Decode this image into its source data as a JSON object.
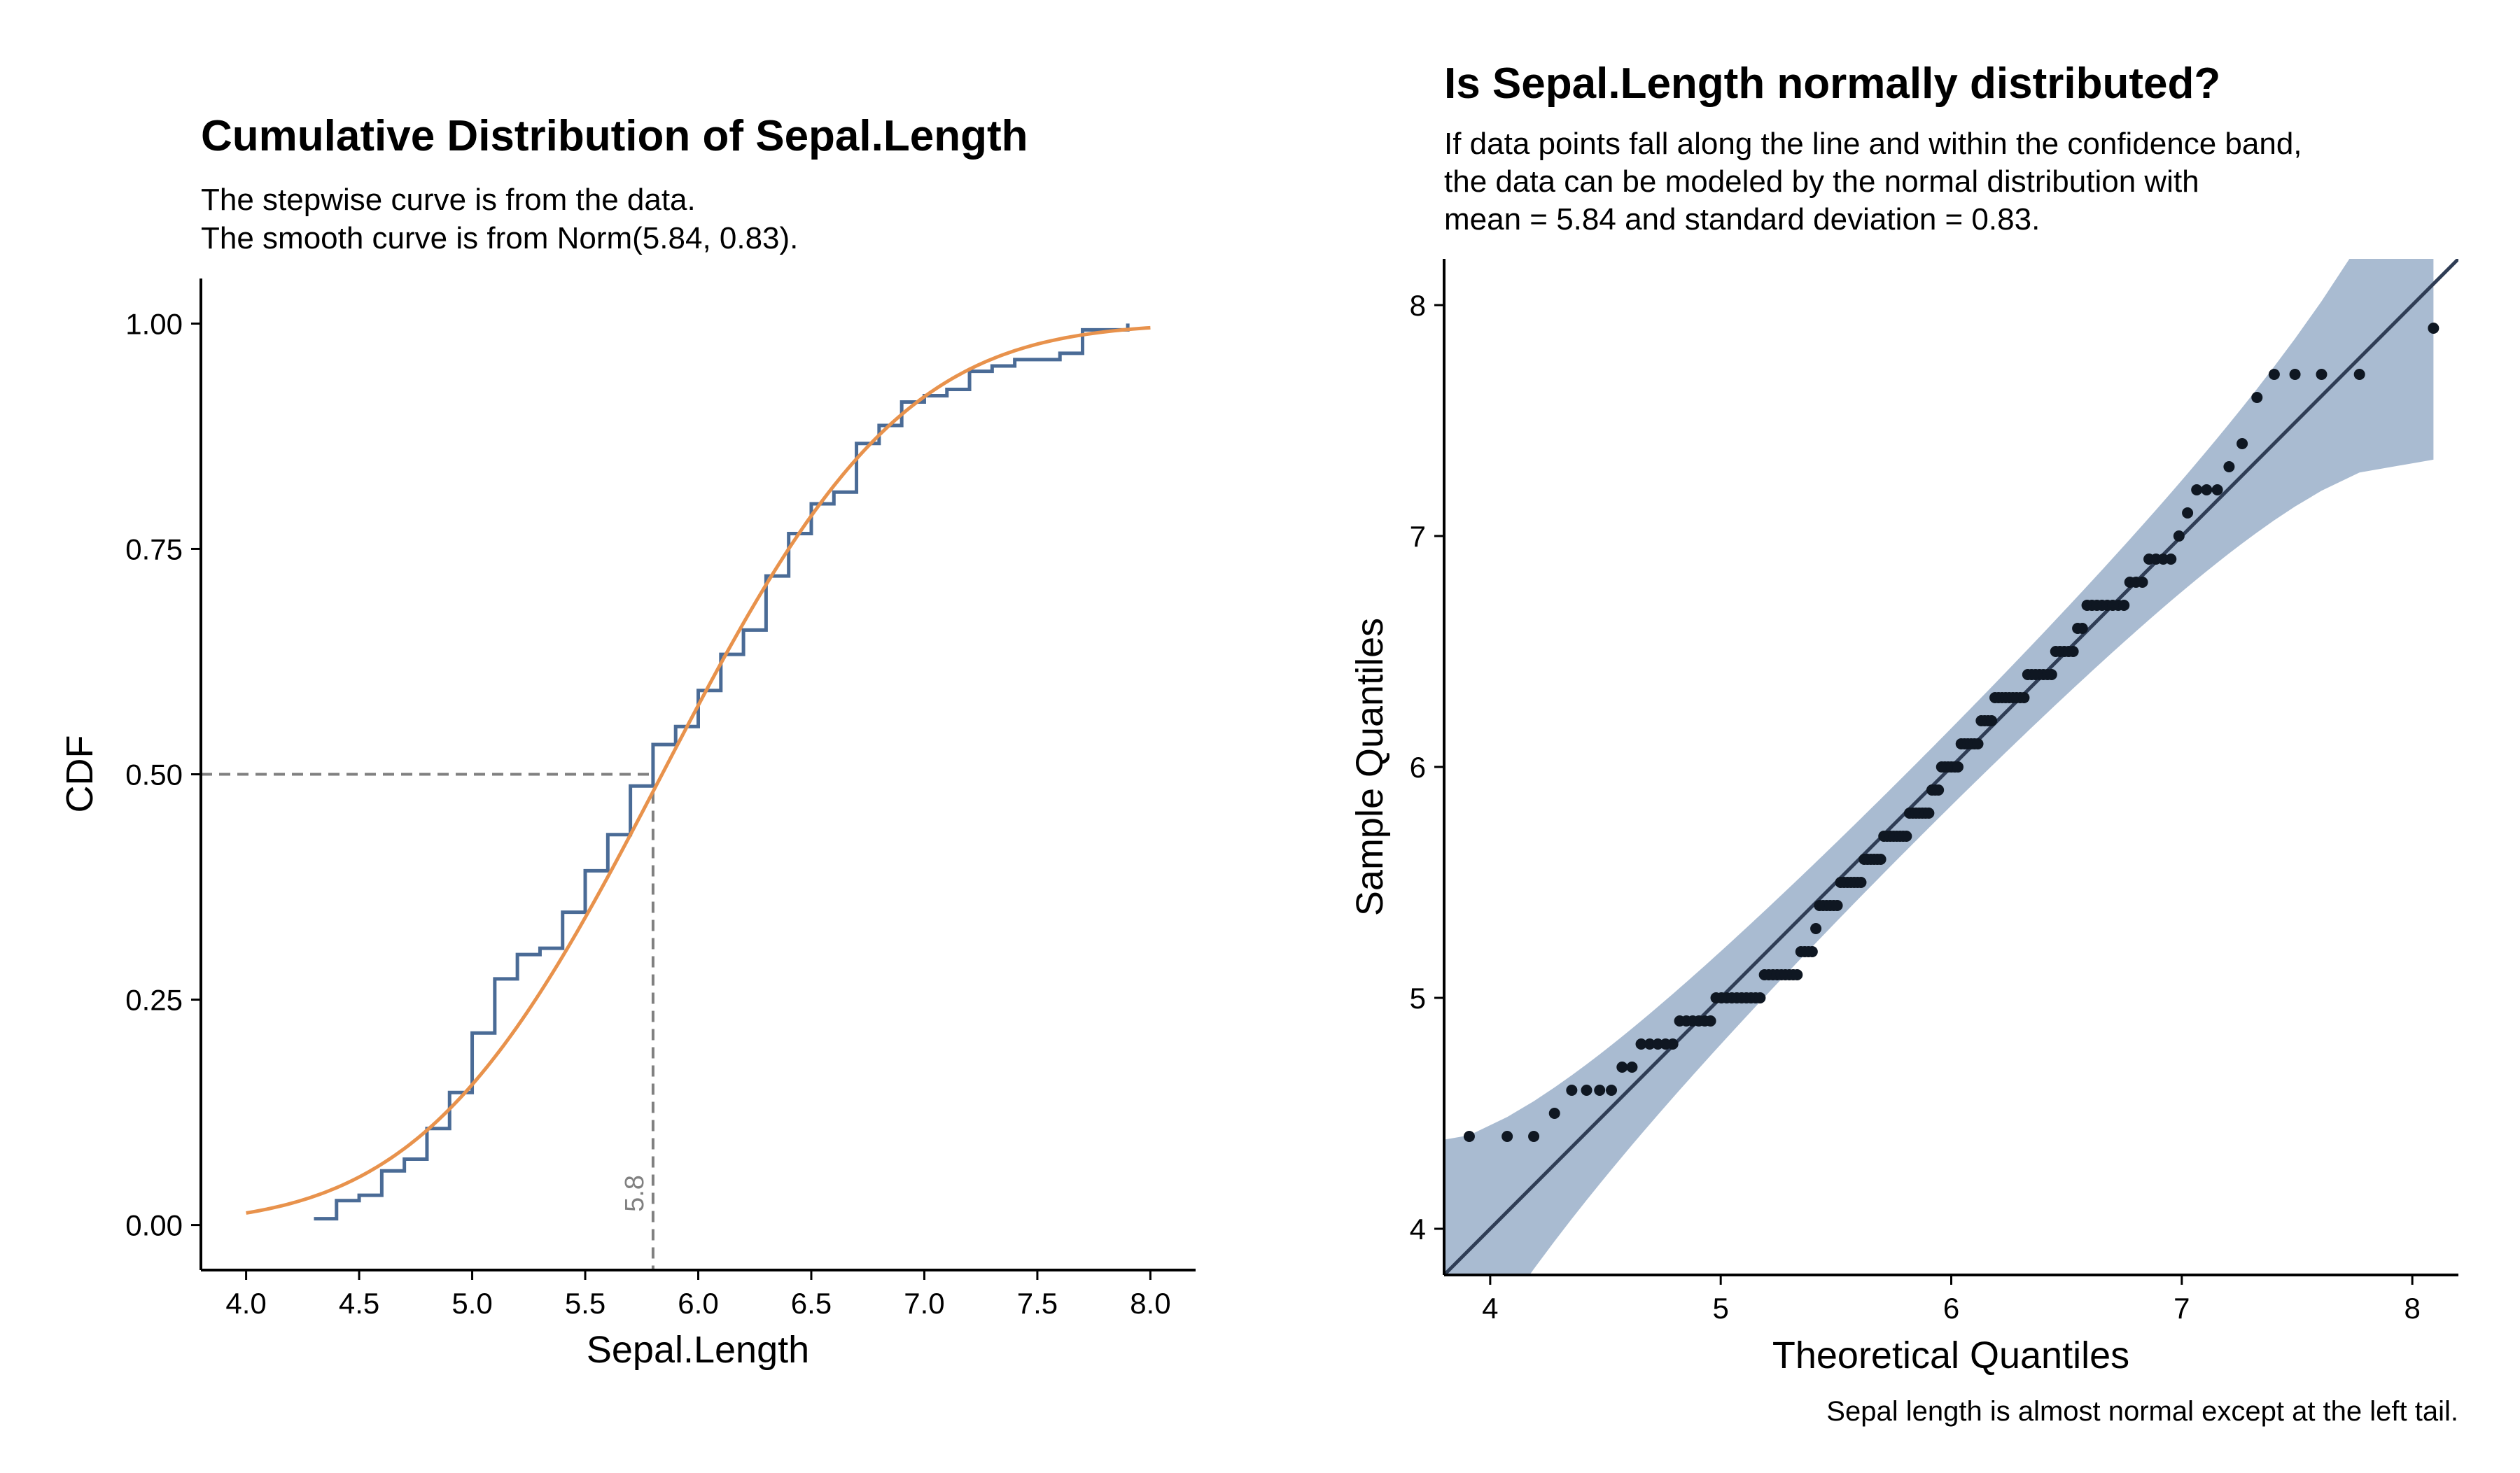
{
  "chart_data": [
    {
      "type": "line",
      "title": "Cumulative Distribution of Sepal.Length",
      "subtitle_lines": [
        "The stepwise curve is from the data.",
        "The smooth curve is from Norm(5.84, 0.83)."
      ],
      "xlabel": "Sepal.Length",
      "ylabel": "CDF",
      "xlim": [
        3.8,
        8.2
      ],
      "ylim": [
        -0.05,
        1.05
      ],
      "x_ticks": [
        "4.0",
        "4.5",
        "5.0",
        "5.5",
        "6.0",
        "6.5",
        "7.0",
        "7.5",
        "8.0"
      ],
      "y_ticks": [
        "0.00",
        "0.25",
        "0.50",
        "0.75",
        "1.00"
      ],
      "grid": false,
      "series": [
        {
          "kind": "ecdf-step",
          "color": "#4a6b96",
          "x": [
            4.3,
            4.4,
            4.5,
            4.6,
            4.7,
            4.8,
            4.9,
            5.0,
            5.1,
            5.2,
            5.3,
            5.4,
            5.5,
            5.6,
            5.7,
            5.8,
            5.9,
            6.0,
            6.1,
            6.2,
            6.3,
            6.4,
            6.5,
            6.6,
            6.7,
            6.8,
            6.9,
            7.0,
            7.1,
            7.2,
            7.3,
            7.4,
            7.6,
            7.7,
            7.9
          ],
          "cdf": [
            0.007,
            0.027,
            0.033,
            0.06,
            0.073,
            0.107,
            0.147,
            0.213,
            0.273,
            0.3,
            0.307,
            0.347,
            0.393,
            0.433,
            0.487,
            0.533,
            0.553,
            0.593,
            0.633,
            0.66,
            0.72,
            0.767,
            0.8,
            0.813,
            0.867,
            0.887,
            0.913,
            0.92,
            0.927,
            0.947,
            0.953,
            0.96,
            0.967,
            0.993,
            1.0
          ]
        },
        {
          "kind": "normal-cdf",
          "color": "#e8924c",
          "mean": 5.84,
          "sd": 0.83,
          "x_range": [
            4.0,
            8.0
          ]
        }
      ],
      "annotations": [
        {
          "kind": "median-marker",
          "x": 5.8,
          "y": 0.5,
          "label": "5.8",
          "color": "#808080"
        }
      ]
    },
    {
      "type": "scatter",
      "title": "Is Sepal.Length normally distributed?",
      "subtitle_lines": [
        "If data points fall along the line and within the confidence band,",
        "the data can be modeled by the normal distribution with",
        "mean = 5.84 and standard deviation = 0.83."
      ],
      "xlabel": "Theoretical Quantiles",
      "ylabel": "Sample Quantiles",
      "caption": "Sepal length is almost normal except at the left tail.",
      "xlim": [
        3.8,
        8.2
      ],
      "ylim": [
        3.8,
        8.2
      ],
      "x_ticks": [
        "4",
        "5",
        "6",
        "7",
        "8"
      ],
      "y_ticks": [
        "4",
        "5",
        "6",
        "7",
        "8"
      ],
      "grid": false,
      "mean": 5.84,
      "sd": 0.83,
      "line_color": "#2f3d55",
      "band_color": "#a9bbd1",
      "point_color": "#0f1722",
      "sample_values": [
        4.3,
        4.4,
        4.4,
        4.4,
        4.5,
        4.6,
        4.6,
        4.6,
        4.6,
        4.7,
        4.7,
        4.8,
        4.8,
        4.8,
        4.8,
        4.8,
        4.9,
        4.9,
        4.9,
        4.9,
        4.9,
        4.9,
        5.0,
        5.0,
        5.0,
        5.0,
        5.0,
        5.0,
        5.0,
        5.0,
        5.0,
        5.0,
        5.1,
        5.1,
        5.1,
        5.1,
        5.1,
        5.1,
        5.1,
        5.1,
        5.1,
        5.2,
        5.2,
        5.2,
        5.2,
        5.3,
        5.4,
        5.4,
        5.4,
        5.4,
        5.4,
        5.4,
        5.5,
        5.5,
        5.5,
        5.5,
        5.5,
        5.5,
        5.5,
        5.6,
        5.6,
        5.6,
        5.6,
        5.6,
        5.6,
        5.7,
        5.7,
        5.7,
        5.7,
        5.7,
        5.7,
        5.7,
        5.7,
        5.8,
        5.8,
        5.8,
        5.8,
        5.8,
        5.8,
        5.8,
        5.9,
        5.9,
        5.9,
        6.0,
        6.0,
        6.0,
        6.0,
        6.0,
        6.0,
        6.1,
        6.1,
        6.1,
        6.1,
        6.1,
        6.1,
        6.2,
        6.2,
        6.2,
        6.2,
        6.3,
        6.3,
        6.3,
        6.3,
        6.3,
        6.3,
        6.3,
        6.3,
        6.3,
        6.4,
        6.4,
        6.4,
        6.4,
        6.4,
        6.4,
        6.4,
        6.5,
        6.5,
        6.5,
        6.5,
        6.5,
        6.6,
        6.6,
        6.7,
        6.7,
        6.7,
        6.7,
        6.7,
        6.7,
        6.7,
        6.7,
        6.8,
        6.8,
        6.8,
        6.9,
        6.9,
        6.9,
        6.9,
        7.0,
        7.1,
        7.2,
        7.2,
        7.2,
        7.3,
        7.4,
        7.6,
        7.7,
        7.7,
        7.7,
        7.7,
        7.9
      ]
    }
  ]
}
